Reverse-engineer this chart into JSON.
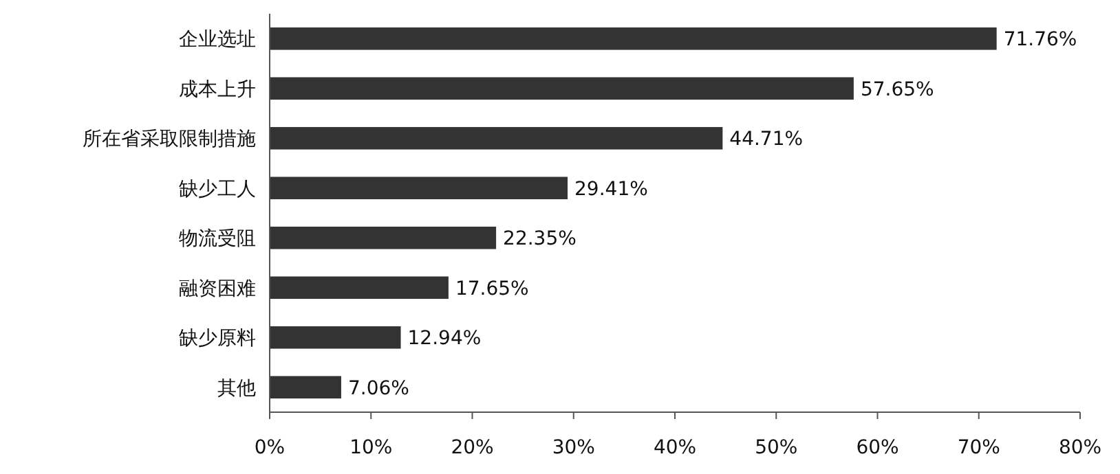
{
  "chart_data": {
    "type": "bar",
    "orientation": "horizontal",
    "color": "#333333",
    "categories": [
      "企业选址",
      "成本上升",
      "所在省采取限制措施",
      "缺少工人",
      "物流受阻",
      "融资困难",
      "缺少原料",
      "其他"
    ],
    "values": [
      71.76,
      57.65,
      44.71,
      29.41,
      22.35,
      17.65,
      12.94,
      7.06
    ],
    "value_labels": [
      "71.76%",
      "57.65%",
      "44.71%",
      "29.41%",
      "22.35%",
      "17.65%",
      "12.94%",
      "7.06%"
    ],
    "xlim": [
      0,
      80
    ],
    "xticks": [
      {
        "value": 0,
        "label": "0%"
      },
      {
        "value": 10,
        "label": "10%"
      },
      {
        "value": 20,
        "label": "20%"
      },
      {
        "value": 30,
        "label": "30%"
      },
      {
        "value": 40,
        "label": "40%"
      },
      {
        "value": 50,
        "label": "50%"
      },
      {
        "value": 60,
        "label": "60%"
      },
      {
        "value": 70,
        "label": "70%"
      },
      {
        "value": 80,
        "label": "80%"
      }
    ]
  }
}
